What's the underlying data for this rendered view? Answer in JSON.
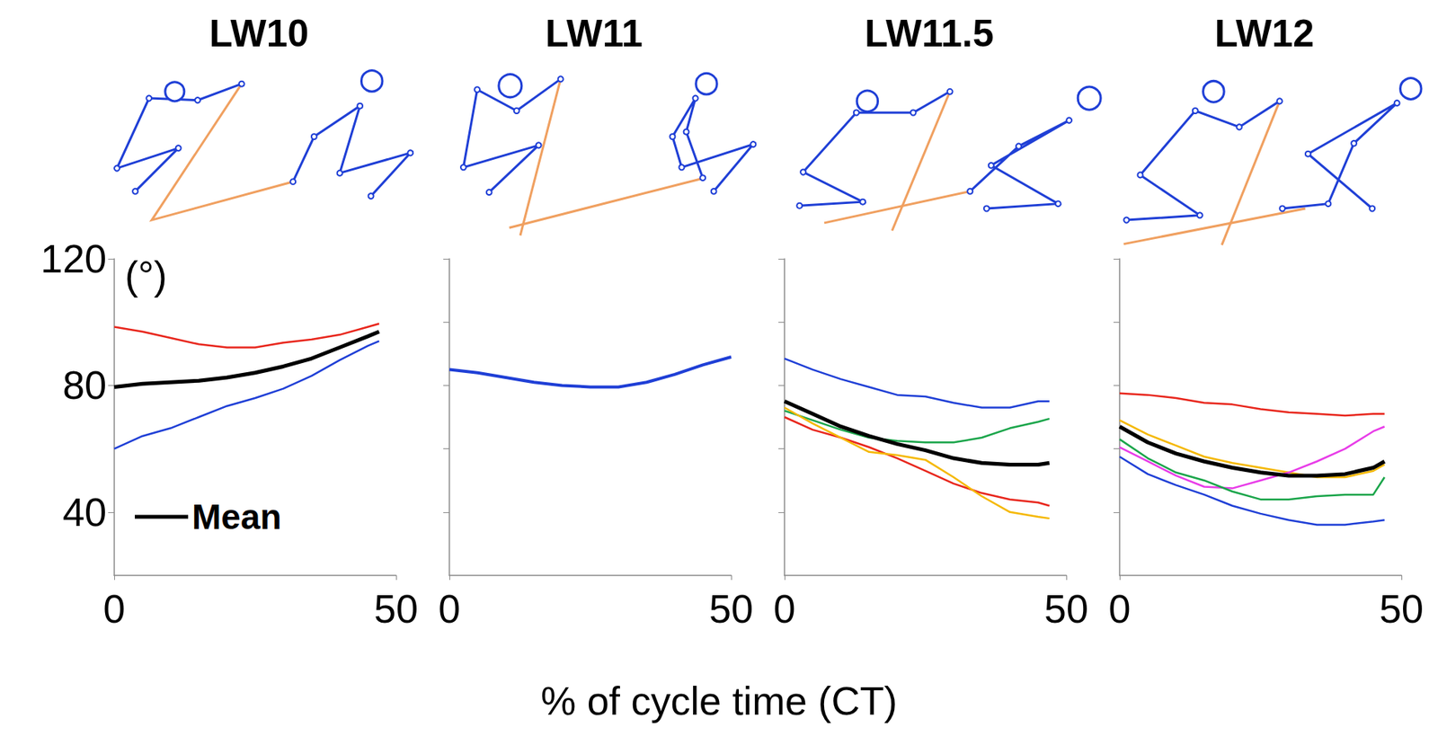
{
  "xlabel": "% of cycle time (CT)",
  "chart_data": [
    {
      "type": "line",
      "title": "LW10",
      "ylabel": "(°)",
      "legend": "lower left",
      "grid": false,
      "x": [
        0,
        5,
        10,
        15,
        20,
        25,
        30,
        35,
        40,
        45,
        47
      ],
      "xlim": [
        0,
        50
      ],
      "xticks": [
        0,
        50
      ],
      "ylim": [
        20,
        120
      ],
      "yticks": [
        40,
        80,
        120
      ],
      "series": [
        {
          "color": "#e8261c",
          "values": [
            98.5,
            97,
            95,
            93,
            92,
            92,
            93.5,
            94.5,
            96,
            98.5,
            99.5
          ]
        },
        {
          "name": "Mean",
          "color": "#000000",
          "values": [
            79.5,
            80.5,
            81,
            81.5,
            82.5,
            84,
            86,
            88.5,
            92,
            95.5,
            97
          ]
        },
        {
          "color": "#1f3fd6",
          "values": [
            60,
            64,
            66.5,
            70,
            73.5,
            76,
            79,
            83,
            88,
            92.5,
            94
          ]
        }
      ]
    },
    {
      "type": "line",
      "title": "LW11",
      "grid": false,
      "tick_labels": "x",
      "x": [
        0,
        5,
        10,
        15,
        20,
        25,
        30,
        35,
        40,
        45,
        50
      ],
      "xlim": [
        0,
        50
      ],
      "xticks": [
        0,
        50
      ],
      "ylim": [
        20,
        120
      ],
      "yticks": [
        40,
        60,
        80,
        100,
        120
      ],
      "series": [
        {
          "color": "#1f3fd6",
          "values": [
            85,
            84,
            82.5,
            81,
            80,
            79.5,
            79.5,
            81,
            83.5,
            86.5,
            89
          ]
        }
      ]
    },
    {
      "type": "line",
      "title": "LW11.5",
      "grid": false,
      "tick_labels": "x",
      "x": [
        0,
        5,
        10,
        15,
        20,
        25,
        30,
        35,
        40,
        45,
        47
      ],
      "xlim": [
        0,
        50
      ],
      "xticks": [
        0,
        50
      ],
      "ylim": [
        20,
        120
      ],
      "yticks": [
        40,
        60,
        80,
        100,
        120
      ],
      "series": [
        {
          "color": "#1f3fd6",
          "values": [
            88.5,
            85,
            82,
            79.5,
            77,
            76.5,
            74.5,
            73,
            73,
            75,
            75
          ]
        },
        {
          "color": "#1aa54a",
          "values": [
            72,
            69,
            66,
            63.5,
            62.5,
            62,
            62,
            63.5,
            66.5,
            68.5,
            69.5
          ]
        },
        {
          "name": "Mean",
          "color": "#000000",
          "values": [
            75,
            71,
            67,
            64,
            61.5,
            59.5,
            57,
            55.5,
            55,
            55,
            55.5
          ]
        },
        {
          "color": "#e8261c",
          "values": [
            70,
            66,
            63.5,
            60.5,
            57,
            53,
            49,
            46,
            44,
            43,
            42
          ]
        },
        {
          "color": "#f5b800",
          "values": [
            73,
            68,
            63.5,
            59,
            58,
            56.5,
            51,
            45,
            40,
            38.5,
            38
          ]
        }
      ]
    },
    {
      "type": "line",
      "title": "LW12",
      "grid": false,
      "tick_labels": "x",
      "x": [
        0,
        5,
        10,
        15,
        20,
        25,
        30,
        35,
        40,
        45,
        47
      ],
      "xlim": [
        0,
        50
      ],
      "xticks": [
        0,
        50
      ],
      "ylim": [
        20,
        120
      ],
      "yticks": [
        40,
        60,
        80,
        100,
        120
      ],
      "series": [
        {
          "color": "#e8261c",
          "values": [
            77.5,
            77,
            76,
            74.5,
            74,
            72.5,
            71.5,
            71,
            70.5,
            71,
            71
          ]
        },
        {
          "color": "#f5b800",
          "values": [
            69,
            64.5,
            61,
            57.5,
            55.5,
            54,
            52.5,
            51,
            51,
            53,
            55
          ]
        },
        {
          "name": "Mean",
          "color": "#000000",
          "values": [
            67,
            62,
            58.5,
            56,
            54,
            52.5,
            51.5,
            51.5,
            52,
            54,
            56
          ]
        },
        {
          "color": "#e83ce8",
          "values": [
            60.5,
            56,
            51.5,
            48,
            47.5,
            50,
            52.5,
            56,
            60,
            65.5,
            67
          ]
        },
        {
          "color": "#1aa54a",
          "values": [
            63,
            57,
            52.5,
            50,
            46.5,
            44,
            44,
            45,
            45.5,
            45.5,
            51
          ]
        },
        {
          "color": "#1f3fd6",
          "values": [
            57.5,
            52,
            48.5,
            45.5,
            42,
            39.5,
            37.5,
            36,
            36,
            37,
            37.5
          ]
        }
      ]
    }
  ]
}
